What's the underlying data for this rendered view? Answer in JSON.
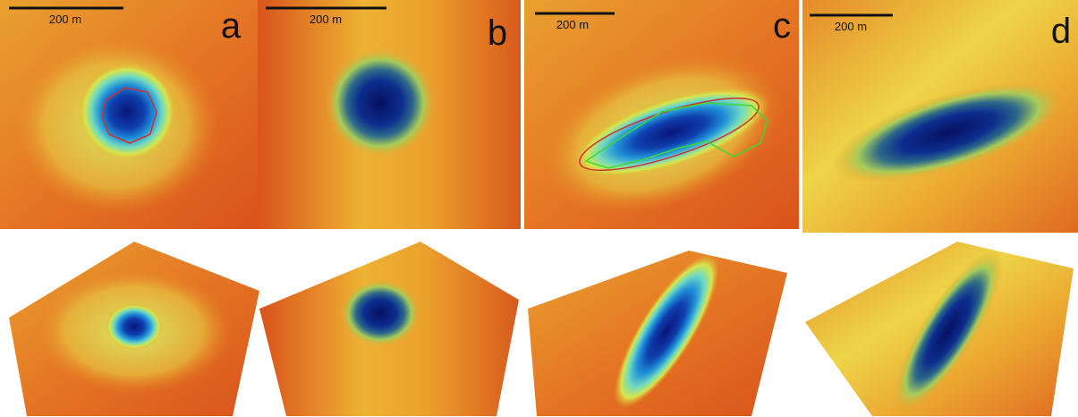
{
  "panels": [
    {
      "label": "a",
      "scale_bar": "200 m"
    },
    {
      "label": "b",
      "scale_bar": "200 m"
    },
    {
      "label": "c",
      "scale_bar": "200 m"
    },
    {
      "label": "d",
      "scale_bar": "200 m"
    }
  ]
}
